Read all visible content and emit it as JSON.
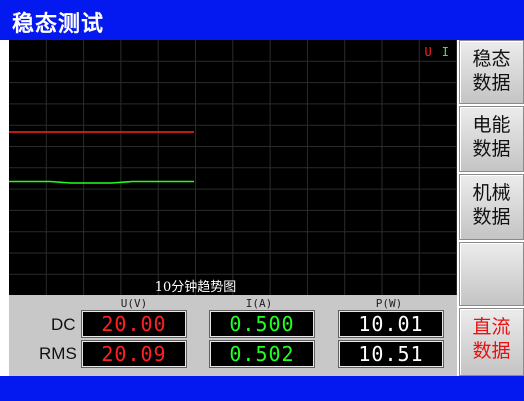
{
  "window": {
    "title": "稳态测试"
  },
  "chart": {
    "caption": "10分钟趋势图",
    "legend": {
      "u": "U",
      "i": "I"
    }
  },
  "chart_data": {
    "type": "line",
    "series": [
      {
        "name": "U",
        "color": "#ff2020",
        "values": [
          20.0,
          20.0,
          20.0,
          20.0,
          20.0,
          20.0,
          20.0,
          20.0,
          20.0,
          20.0
        ]
      },
      {
        "name": "I",
        "color": "#20ff20",
        "values": [
          0.5,
          0.5,
          0.5,
          0.499,
          0.499,
          0.499,
          0.5,
          0.5,
          0.5,
          0.5
        ]
      }
    ],
    "grid": true
  },
  "readings": {
    "headers": {
      "u": "U(V)",
      "i": "I(A)",
      "p": "P(W)"
    },
    "dc": {
      "label": "DC",
      "u": "20.00",
      "i": "0.500",
      "p": "10.01"
    },
    "rms": {
      "label": "RMS",
      "u": "20.09",
      "i": "0.502",
      "p": "10.51"
    }
  },
  "sidebar": {
    "buttons": [
      {
        "line1": "稳态",
        "line2": "数据"
      },
      {
        "line1": "电能",
        "line2": "数据"
      },
      {
        "line1": "机械",
        "line2": "数据"
      },
      {
        "line1": "",
        "line2": ""
      },
      {
        "line1": "直流",
        "line2": "数据"
      }
    ]
  }
}
